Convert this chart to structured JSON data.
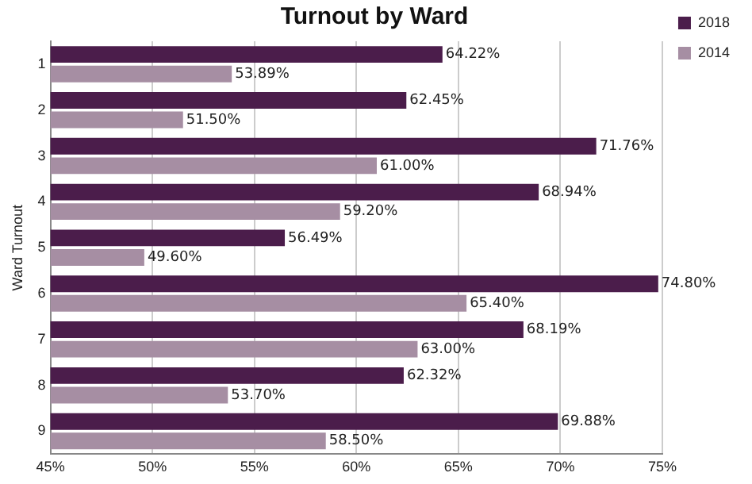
{
  "chart_data": {
    "type": "bar",
    "orientation": "horizontal",
    "title": "Turnout by Ward",
    "ylabel": "Ward Turnout",
    "categories": [
      "1",
      "2",
      "3",
      "4",
      "5",
      "6",
      "7",
      "8",
      "9"
    ],
    "series": [
      {
        "name": "2018",
        "color": "#4b1d4b",
        "values": [
          64.22,
          62.45,
          71.76,
          68.94,
          56.49,
          74.8,
          68.19,
          62.32,
          69.88
        ],
        "value_labels": [
          "64.22%",
          "62.45%",
          "71.76%",
          "68.94%",
          "56.49%",
          "74.80%",
          "68.19%",
          "62.32%",
          "69.88%"
        ]
      },
      {
        "name": "2014",
        "color": "#a68ea3",
        "values": [
          53.89,
          51.5,
          61.0,
          59.2,
          49.6,
          65.4,
          63.0,
          53.7,
          58.5
        ],
        "value_labels": [
          "53.89%",
          "51.50%",
          "61.00%",
          "59.20%",
          "49.60%",
          "65.40%",
          "63.00%",
          "53.70%",
          "58.50%"
        ]
      }
    ],
    "xlim": [
      45,
      75
    ],
    "xticks": [
      {
        "value": 45,
        "label": "45%"
      },
      {
        "value": 50,
        "label": "50%"
      },
      {
        "value": 55,
        "label": "55%"
      },
      {
        "value": 60,
        "label": "60%"
      },
      {
        "value": 65,
        "label": "65%"
      },
      {
        "value": 70,
        "label": "70%"
      },
      {
        "value": 75,
        "label": "75%"
      }
    ],
    "grid": "x",
    "legend": "top right"
  }
}
